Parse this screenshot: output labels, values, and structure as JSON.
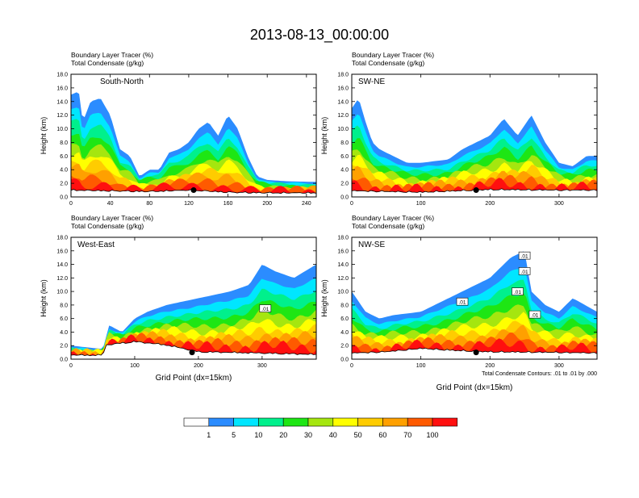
{
  "title": "2013-08-13_00:00:00",
  "panel_header": {
    "line1": "Boundary Layer Tracer   (%)",
    "line2": "Total Condensate   (g/kg)"
  },
  "y_axis_label": "Height (km)",
  "x_axis_label": "Grid Point (dx=15km)",
  "contour_note": "Total Condensate Contours: .01 to .01 by .000",
  "contour_label": ".01",
  "colors": {
    "levels": [
      "#ffffff",
      "#2b8cff",
      "#00e6ff",
      "#00f08c",
      "#1ee614",
      "#a5e60f",
      "#ffff00",
      "#ffcc00",
      "#ffa000",
      "#ff5a00",
      "#ff0f0f"
    ],
    "white_background": "#ffffff",
    "terrain": "#000000"
  },
  "legend": {
    "labels": [
      "1",
      "5",
      "10",
      "20",
      "30",
      "40",
      "50",
      "60",
      "70",
      "100"
    ]
  },
  "chart_data": [
    {
      "type": "heatmap",
      "name": "South-North",
      "title": "South-North",
      "xlim": [
        0,
        250
      ],
      "ylim": [
        0,
        18
      ],
      "xticks": [
        0,
        40,
        80,
        120,
        160,
        200,
        240
      ],
      "yticks": [
        0.0,
        2.0,
        4.0,
        6.0,
        8.0,
        10.0,
        12.0,
        14.0,
        16.0,
        18.0
      ],
      "xlabel": "",
      "ylabel": "Height (km)",
      "terrain_km": [
        [
          0,
          0.9
        ],
        [
          40,
          0.8
        ],
        [
          80,
          0.7
        ],
        [
          120,
          0.9
        ],
        [
          160,
          0.6
        ],
        [
          200,
          0.5
        ],
        [
          250,
          0.5
        ]
      ],
      "tracer_top_km": [
        [
          0,
          15
        ],
        [
          8,
          15.5
        ],
        [
          12,
          11
        ],
        [
          20,
          14
        ],
        [
          30,
          14.5
        ],
        [
          40,
          12
        ],
        [
          50,
          7
        ],
        [
          60,
          6
        ],
        [
          70,
          3
        ],
        [
          80,
          4
        ],
        [
          90,
          4
        ],
        [
          100,
          6.5
        ],
        [
          110,
          7
        ],
        [
          120,
          8
        ],
        [
          130,
          10
        ],
        [
          140,
          11
        ],
        [
          150,
          9
        ],
        [
          160,
          12
        ],
        [
          170,
          10
        ],
        [
          180,
          6
        ],
        [
          190,
          3
        ],
        [
          200,
          2.5
        ],
        [
          220,
          2.3
        ],
        [
          250,
          2.2
        ]
      ],
      "marker": {
        "x": 125,
        "height_km": 1.0
      }
    },
    {
      "type": "heatmap",
      "name": "SW-NE",
      "title": "SW-NE",
      "xlim": [
        0,
        355
      ],
      "ylim": [
        0,
        18
      ],
      "xticks": [
        0,
        100,
        200,
        300
      ],
      "yticks": [
        0.0,
        2.0,
        4.0,
        6.0,
        8.0,
        10.0,
        12.0,
        14.0,
        16.0,
        18.0
      ],
      "xlabel": "",
      "ylabel": "Height (km)",
      "terrain_km": [
        [
          0,
          0.8
        ],
        [
          100,
          0.6
        ],
        [
          200,
          1.0
        ],
        [
          300,
          0.9
        ],
        [
          355,
          0.9
        ]
      ],
      "tracer_top_km": [
        [
          0,
          13
        ],
        [
          10,
          14.5
        ],
        [
          20,
          11
        ],
        [
          30,
          8
        ],
        [
          40,
          7
        ],
        [
          60,
          6
        ],
        [
          80,
          5
        ],
        [
          100,
          5
        ],
        [
          140,
          5.5
        ],
        [
          160,
          7
        ],
        [
          180,
          8
        ],
        [
          200,
          9
        ],
        [
          220,
          11.5
        ],
        [
          240,
          9
        ],
        [
          260,
          12
        ],
        [
          280,
          8
        ],
        [
          300,
          5
        ],
        [
          320,
          4.5
        ],
        [
          340,
          6
        ],
        [
          355,
          6
        ]
      ],
      "marker": {
        "x": 180,
        "height_km": 1.0
      }
    },
    {
      "type": "heatmap",
      "name": "West-East",
      "title": "West-East",
      "xlim": [
        0,
        385
      ],
      "ylim": [
        0,
        18
      ],
      "xticks": [
        0,
        100,
        200,
        300
      ],
      "yticks": [
        0.0,
        2.0,
        4.0,
        6.0,
        8.0,
        10.0,
        12.0,
        14.0,
        16.0,
        18.0
      ],
      "xlabel": "Grid Point (dx=15km)",
      "ylabel": "Height (km)",
      "terrain_km": [
        [
          0,
          0.5
        ],
        [
          50,
          0.5
        ],
        [
          55,
          2.0
        ],
        [
          100,
          2.5
        ],
        [
          150,
          2.0
        ],
        [
          200,
          1.0
        ],
        [
          300,
          0.8
        ],
        [
          385,
          0.6
        ]
      ],
      "tracer_top_km": [
        [
          0,
          2
        ],
        [
          50,
          1.5
        ],
        [
          60,
          5
        ],
        [
          80,
          4
        ],
        [
          100,
          6
        ],
        [
          120,
          7
        ],
        [
          150,
          8
        ],
        [
          200,
          9
        ],
        [
          250,
          10
        ],
        [
          280,
          11
        ],
        [
          300,
          14
        ],
        [
          320,
          13
        ],
        [
          350,
          12
        ],
        [
          385,
          14
        ]
      ],
      "contour_label_points": [
        {
          "x": 305,
          "height_km": 7.5
        }
      ],
      "marker": {
        "x": 190,
        "height_km": 1.0
      }
    },
    {
      "type": "heatmap",
      "name": "NW-SE",
      "title": "NW-SE",
      "xlim": [
        0,
        355
      ],
      "ylim": [
        0,
        18
      ],
      "xticks": [
        0,
        100,
        200,
        300
      ],
      "yticks": [
        0.0,
        2.0,
        4.0,
        6.0,
        8.0,
        10.0,
        12.0,
        14.0,
        16.0,
        18.0
      ],
      "xlabel": "Grid Point (dx=15km)",
      "ylabel": "Height (km)",
      "terrain_km": [
        [
          0,
          0.8
        ],
        [
          50,
          1.0
        ],
        [
          100,
          1.5
        ],
        [
          150,
          1.2
        ],
        [
          200,
          1.0
        ],
        [
          300,
          0.9
        ],
        [
          355,
          0.8
        ]
      ],
      "tracer_top_km": [
        [
          0,
          10
        ],
        [
          20,
          7
        ],
        [
          40,
          6
        ],
        [
          60,
          6.5
        ],
        [
          100,
          7
        ],
        [
          140,
          9
        ],
        [
          160,
          10
        ],
        [
          200,
          12
        ],
        [
          230,
          15
        ],
        [
          250,
          16
        ],
        [
          260,
          10
        ],
        [
          280,
          8
        ],
        [
          300,
          7
        ],
        [
          320,
          9
        ],
        [
          355,
          7
        ]
      ],
      "contour_label_points": [
        {
          "x": 160,
          "height_km": 8.5
        },
        {
          "x": 240,
          "height_km": 10.0
        },
        {
          "x": 250,
          "height_km": 15.3
        },
        {
          "x": 250,
          "height_km": 13.0
        },
        {
          "x": 265,
          "height_km": 6.6
        }
      ],
      "marker": {
        "x": 180,
        "height_km": 1.0
      }
    }
  ]
}
